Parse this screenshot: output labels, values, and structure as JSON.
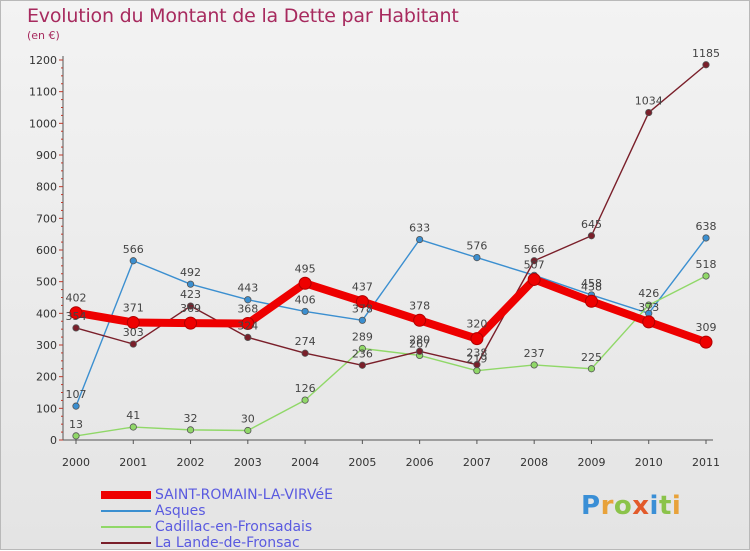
{
  "title": "Evolution du Montant de la Dette par Habitant",
  "subtitle": "(en €)",
  "logo": {
    "p": "P",
    "r": "r",
    "o": "o",
    "x": "x",
    "i": "i",
    "t": "t",
    "i2": "i"
  },
  "chart_data": {
    "type": "line",
    "categories": [
      "2000",
      "2001",
      "2002",
      "2003",
      "2004",
      "2005",
      "2006",
      "2007",
      "2008",
      "2009",
      "2010",
      "2011"
    ],
    "ylim": [
      0,
      1200
    ],
    "yticks": [
      0,
      100,
      200,
      300,
      400,
      500,
      600,
      700,
      800,
      900,
      1000,
      1100,
      1200
    ],
    "grid": false,
    "legend_position": "bottom-left",
    "series": [
      {
        "name": "SAINT-ROMAIN-LA-VIRVéE",
        "color": "#ee0000",
        "thick": true,
        "values": [
          402,
          371,
          369,
          368,
          495,
          437,
          378,
          320,
          507,
          438,
          373,
          309
        ],
        "labels": [
          "402",
          "371",
          "369",
          "368",
          "495",
          "437",
          "378",
          "320",
          "507",
          "438",
          "373",
          "309"
        ]
      },
      {
        "name": "Asques",
        "color": "#3b8fd0",
        "thick": false,
        "values": [
          107,
          566,
          492,
          443,
          406,
          378,
          633,
          576,
          520,
          458,
          400,
          638
        ],
        "labels": [
          "107",
          "566",
          "492",
          "443",
          "406",
          "378",
          "633",
          "576",
          "",
          "458",
          "",
          "638"
        ]
      },
      {
        "name": "Cadillac-en-Fronsadais",
        "color": "#90d868",
        "thick": false,
        "values": [
          13,
          41,
          32,
          30,
          126,
          289,
          267,
          219,
          237,
          225,
          426,
          518
        ],
        "labels": [
          "13",
          "41",
          "32",
          "30",
          "126",
          "289",
          "267",
          "219",
          "237",
          "225",
          "426",
          "518"
        ]
      },
      {
        "name": "La Lande-de-Fronsac",
        "color": "#7a1f2a",
        "thick": false,
        "values": [
          354,
          303,
          423,
          324,
          274,
          236,
          280,
          238,
          566,
          645,
          1034,
          1185
        ],
        "labels": [
          "354",
          "303",
          "423",
          "324",
          "274",
          "236",
          "280",
          "238",
          "566",
          "645",
          "1034",
          "1185"
        ]
      }
    ]
  }
}
